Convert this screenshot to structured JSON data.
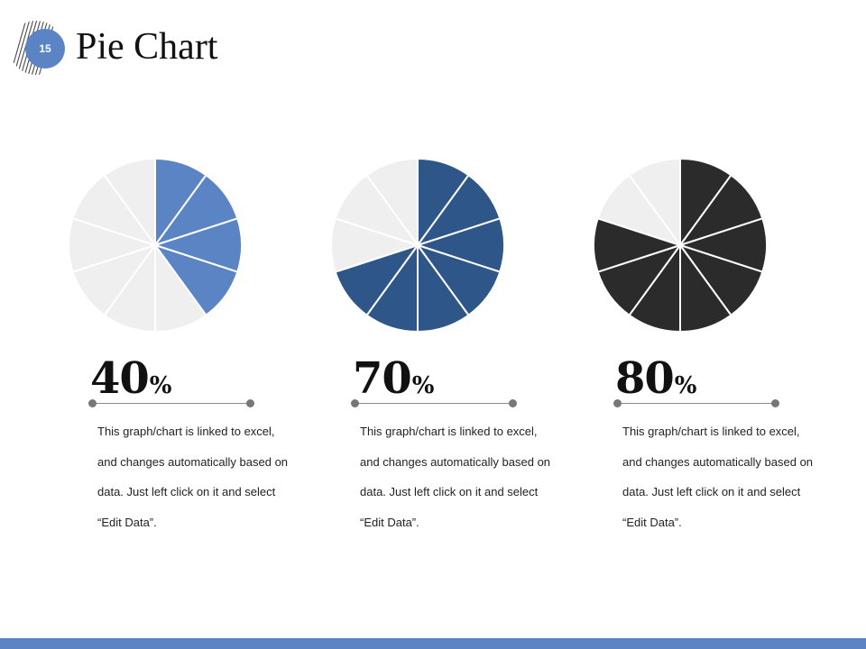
{
  "slide": {
    "number": "15",
    "title": "Pie Chart"
  },
  "colors": {
    "accent": "#5b84c4",
    "empty_slice": "#efefef",
    "slice_stroke": "#ffffff",
    "bottom_bar": "#5b84c4"
  },
  "chart_data": [
    {
      "type": "pie",
      "slices_total": 10,
      "filled_slices": 4,
      "value": 40,
      "fill_color": "#5b84c4",
      "label_number": "40",
      "label_symbol": "%",
      "description": "This graph/chart is linked to excel, and changes automatically based on data. Just left click on it and select “Edit Data”."
    },
    {
      "type": "pie",
      "slices_total": 10,
      "filled_slices": 7,
      "value": 70,
      "fill_color": "#2f5689",
      "label_number": "70",
      "label_symbol": "%",
      "description": "This graph/chart is linked to excel, and changes automatically based on data. Just left click on it and select “Edit Data”."
    },
    {
      "type": "pie",
      "slices_total": 10,
      "filled_slices": 8,
      "value": 80,
      "fill_color": "#2b2b2b",
      "label_number": "80",
      "label_symbol": "%",
      "description": "This graph/chart is linked to excel, and changes automatically based on data. Just left click on it and select “Edit Data”."
    }
  ]
}
